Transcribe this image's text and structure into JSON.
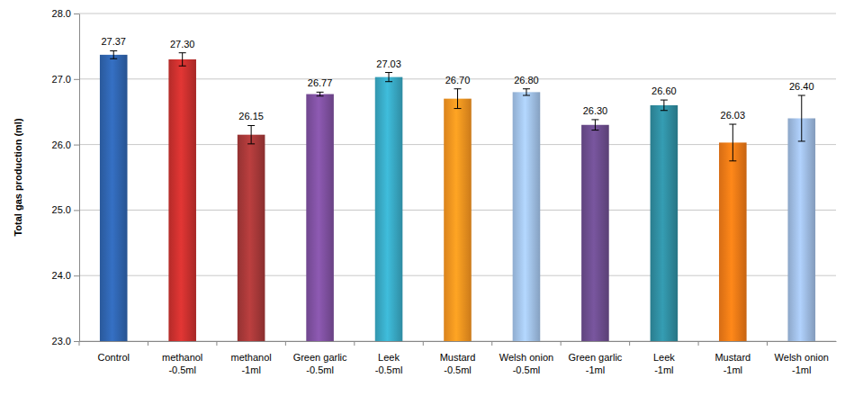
{
  "chart_data": {
    "type": "bar",
    "y_label": "Total gas production (ml)",
    "categories": [
      "Control",
      "methanol -0.5ml",
      "methanol -1ml",
      "Green garlic -0.5ml",
      "Leek -0.5ml",
      "Mustard -0.5ml",
      "Welsh onion -0.5ml",
      "Green garlic -1ml",
      "Leek -1ml",
      "Mustard -1ml",
      "Welsh onion -1ml"
    ],
    "values": [
      27.37,
      27.3,
      26.15,
      26.77,
      27.03,
      26.7,
      26.8,
      26.3,
      26.6,
      26.03,
      26.4
    ],
    "value_labels": [
      "27.37",
      "27.30",
      "26.15",
      "26.77",
      "27.03",
      "26.70",
      "26.80",
      "26.30",
      "26.60",
      "26.03",
      "26.40"
    ],
    "errors": [
      0.06,
      0.1,
      0.14,
      0.03,
      0.07,
      0.15,
      0.05,
      0.08,
      0.08,
      0.28,
      0.35
    ],
    "colors": [
      "#2f63ad",
      "#c8302e",
      "#a53838",
      "#7d4f9e",
      "#38a7c2",
      "#f3921f",
      "#9fbfe6",
      "#6b4c8c",
      "#2f8b9e",
      "#ee7816",
      "#9cb9df"
    ],
    "ylim": [
      23,
      28
    ],
    "yticks": [
      {
        "value": 23,
        "label": "23.0"
      },
      {
        "value": 24,
        "label": "24.0"
      },
      {
        "value": 25,
        "label": "25.0"
      },
      {
        "value": 26,
        "label": "26.0"
      },
      {
        "value": 27,
        "label": "27.0"
      },
      {
        "value": 28,
        "label": "28.0"
      }
    ],
    "grid": true,
    "data_labels": true
  }
}
